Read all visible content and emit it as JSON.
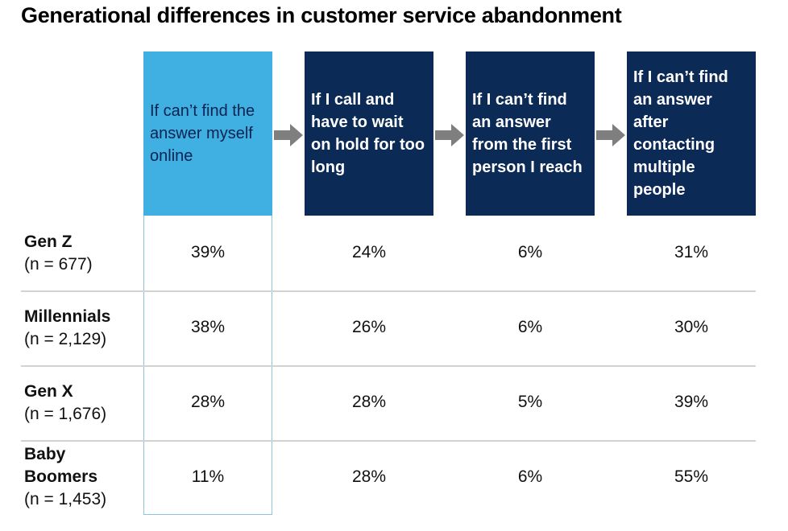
{
  "title": "Generational differences in customer service abandonment",
  "colors": {
    "highlight": "#40b0e3",
    "dark": "#0b2a56",
    "arrow": "#7f7f7f"
  },
  "chart_data": {
    "type": "table",
    "title": "Generational differences in customer service abandonment",
    "columns": [
      "If can’t find the answer myself online",
      "If I call and have to wait on hold for too long",
      "If I can’t find an answer from the first person I reach",
      "If I can’t find an answer after contacting multiple people"
    ],
    "rows": [
      {
        "name": "Gen Z",
        "n": "(n = 677)",
        "values": [
          "39%",
          "24%",
          "6%",
          "31%"
        ]
      },
      {
        "name": "Millennials",
        "n": "(n = 2,129)",
        "values": [
          "38%",
          "26%",
          "6%",
          "30%"
        ]
      },
      {
        "name": "Gen X",
        "n": "(n = 1,676)",
        "values": [
          "28%",
          "28%",
          "5%",
          "39%"
        ]
      },
      {
        "name": "Baby Boomers",
        "n": "(n = 1,453)",
        "values": [
          "11%",
          "28%",
          "6%",
          "55%"
        ]
      }
    ]
  }
}
